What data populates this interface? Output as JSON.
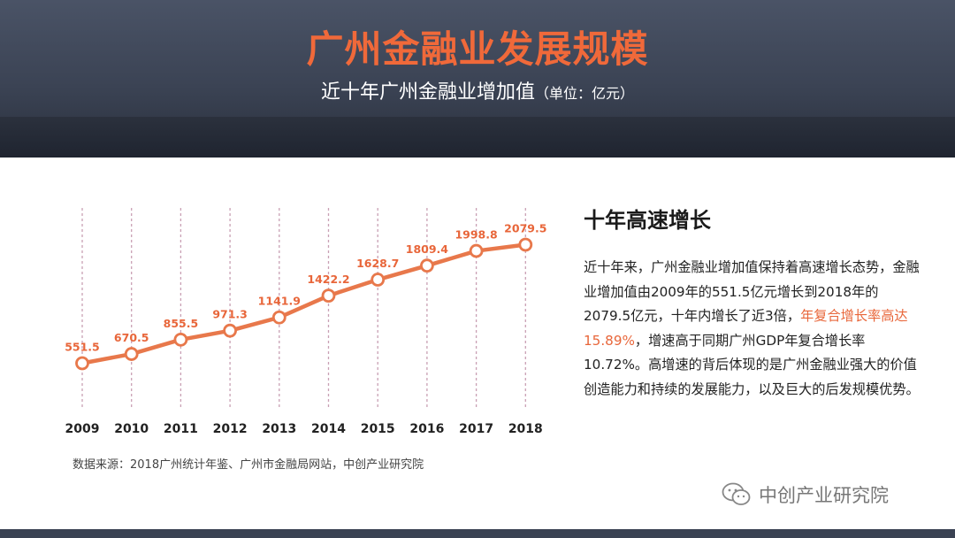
{
  "header": {
    "title": "广州金融业发展规模",
    "subtitle": "近十年广州金融业增加值",
    "unit": "（单位：亿元）"
  },
  "chart_data": {
    "type": "line",
    "x": [
      "2009",
      "2010",
      "2011",
      "2012",
      "2013",
      "2014",
      "2015",
      "2016",
      "2017",
      "2018"
    ],
    "series": [
      {
        "values": [
          551.5,
          670.5,
          855.5,
          971.3,
          1141.9,
          1422.2,
          1628.7,
          1809.4,
          1998.8,
          2079.5
        ]
      }
    ],
    "data_labels": [
      "551.5",
      "670.5",
      "855.5",
      "971.3",
      "1141.9",
      "1422.2",
      "1628.7",
      "1809.4",
      "1998.8",
      "2079.5"
    ],
    "grid": "vertical dashed",
    "colors": {
      "line": "#e8784b",
      "label": "#e8663a",
      "grid": "#c9a0b4"
    }
  },
  "source": "数据来源：2018广州统计年鉴、广州市金融局网站，中创产业研究院",
  "side": {
    "title": "十年高速增长",
    "para_part1": "近十年来，广州金融业增加值保持着高速增长态势，金融业增加值由2009年的551.5亿元增长到2018年的2079.5亿元，十年内增长了近3倍，",
    "para_highlight": "年复合增长率高达15.89%",
    "para_part2": "，增速高于同期广州GDP年复合增长率10.72%。高增速的背后体现的是广州金融业强大的价值创造能力和持续的发展能力，以及巨大的后发规模优势。"
  },
  "watermark": {
    "icon": "wechat-icon",
    "text": "中创产业研究院"
  }
}
